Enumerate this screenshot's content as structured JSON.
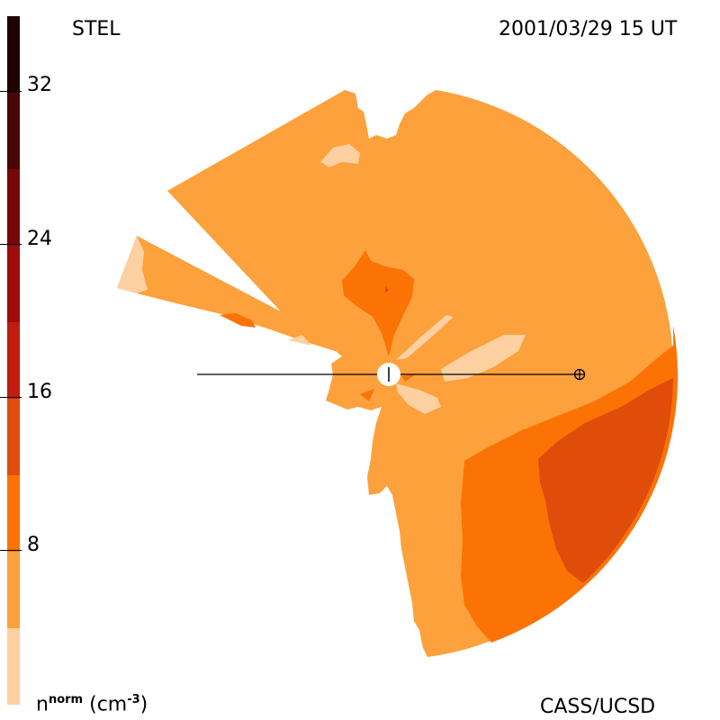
{
  "header": {
    "station": "STEL",
    "timestamp": "2001/03/29 15 UT"
  },
  "footer": {
    "credit": "CASS/UCSD"
  },
  "colorbar": {
    "ticks": [
      "32",
      "24",
      "16",
      "8"
    ],
    "label_main": "n",
    "label_sup": "norm",
    "label_unit": "(cm",
    "label_unit_sup": "-3",
    "label_unit_end": ")",
    "levels": [
      {
        "max": 4,
        "color": "#fdd0a2"
      },
      {
        "max": 8,
        "color": "#fca13c"
      },
      {
        "max": 12,
        "color": "#fc7305"
      },
      {
        "max": 16,
        "color": "#e04c0a"
      },
      {
        "max": 20,
        "color": "#c01d0f"
      },
      {
        "max": 24,
        "color": "#a00c0c"
      },
      {
        "max": 28,
        "color": "#740808"
      },
      {
        "max": 32,
        "color": "#4a0606"
      },
      {
        "max": 36,
        "color": "#200202"
      }
    ]
  }
}
